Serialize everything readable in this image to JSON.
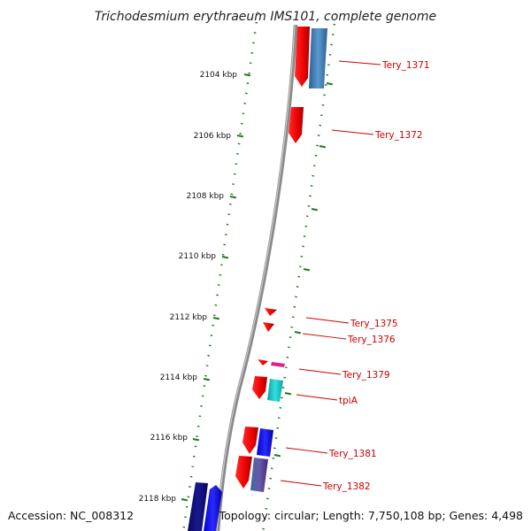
{
  "title": "Trichodesmium erythraeum IMS101, complete genome",
  "footer": {
    "accession": "Accession: NC_008312",
    "summary": "Topology: circular; Length: 7,750,108 bp; Genes: 4,498"
  },
  "ruler_labels": [
    "2104 kbp",
    "2106 kbp",
    "2108 kbp",
    "2110 kbp",
    "2112 kbp",
    "2114 kbp",
    "2116 kbp",
    "2118 kbp"
  ],
  "genes": [
    {
      "name": "Tery_1371",
      "color": "#cc0000"
    },
    {
      "name": "Tery_1372",
      "color": "#cc0000"
    },
    {
      "name": "Tery_1375",
      "color": "#cc0000"
    },
    {
      "name": "Tery_1376",
      "color": "#cc0000"
    },
    {
      "name": "Tery_1379",
      "color": "#cc0000"
    },
    {
      "name": "tpiA",
      "color": "#cc0000"
    },
    {
      "name": "Tery_1381",
      "color": "#cc0000"
    },
    {
      "name": "Tery_1382",
      "color": "#cc0000"
    }
  ],
  "colors": {
    "backbone": "#7a7a7a",
    "tick": "#1f7a1f",
    "red": "#ff0000",
    "steelblue": "#4a86c0",
    "cyan": "#22cccc",
    "blue": "#1a1aff",
    "navy": "#10107a",
    "magenta": "#e0208a",
    "slateblue": "#6a4a9a"
  }
}
